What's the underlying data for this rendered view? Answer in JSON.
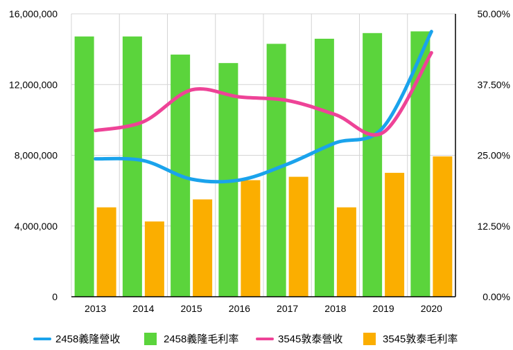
{
  "chart_data": {
    "type": "bar",
    "categories": [
      "2013",
      "2014",
      "2015",
      "2016",
      "2017",
      "2018",
      "2019",
      "2020"
    ],
    "y_left": {
      "ticks": [
        "0",
        "4,000,000",
        "8,000,000",
        "12,000,000",
        "16,000,000"
      ],
      "tick_values": [
        0,
        4000000,
        8000000,
        12000000,
        16000000
      ],
      "range": [
        0,
        16000000
      ]
    },
    "y_right": {
      "ticks": [
        "0.00%",
        "12.50%",
        "25.00%",
        "37.50%",
        "50.00%"
      ],
      "tick_values": [
        0,
        12.5,
        25,
        37.5,
        50
      ],
      "range": [
        0,
        50
      ]
    },
    "grid": true,
    "legend_position": "bottom",
    "series": [
      {
        "name": "2458義隆營收",
        "kind": "line",
        "axis": "left",
        "color": "#1aa3ec",
        "values": [
          7800000,
          7700000,
          6650000,
          6600000,
          7500000,
          8700000,
          9600000,
          15000000
        ]
      },
      {
        "name": "2458義隆毛利率",
        "kind": "bar",
        "axis": "right",
        "color": "#5bd43c",
        "values": [
          46.0,
          46.0,
          42.8,
          41.3,
          44.7,
          45.6,
          46.6,
          46.9
        ]
      },
      {
        "name": "3545敦泰營收",
        "kind": "line",
        "axis": "left",
        "color": "#ee4397",
        "values": [
          9400000,
          9900000,
          11700000,
          11300000,
          11100000,
          10300000,
          9300000,
          13800000
        ]
      },
      {
        "name": "3545敦泰毛利率",
        "kind": "bar",
        "axis": "right",
        "color": "#fbae00",
        "values": [
          15.8,
          13.3,
          17.2,
          20.6,
          21.2,
          15.8,
          21.9,
          24.8
        ]
      }
    ]
  }
}
